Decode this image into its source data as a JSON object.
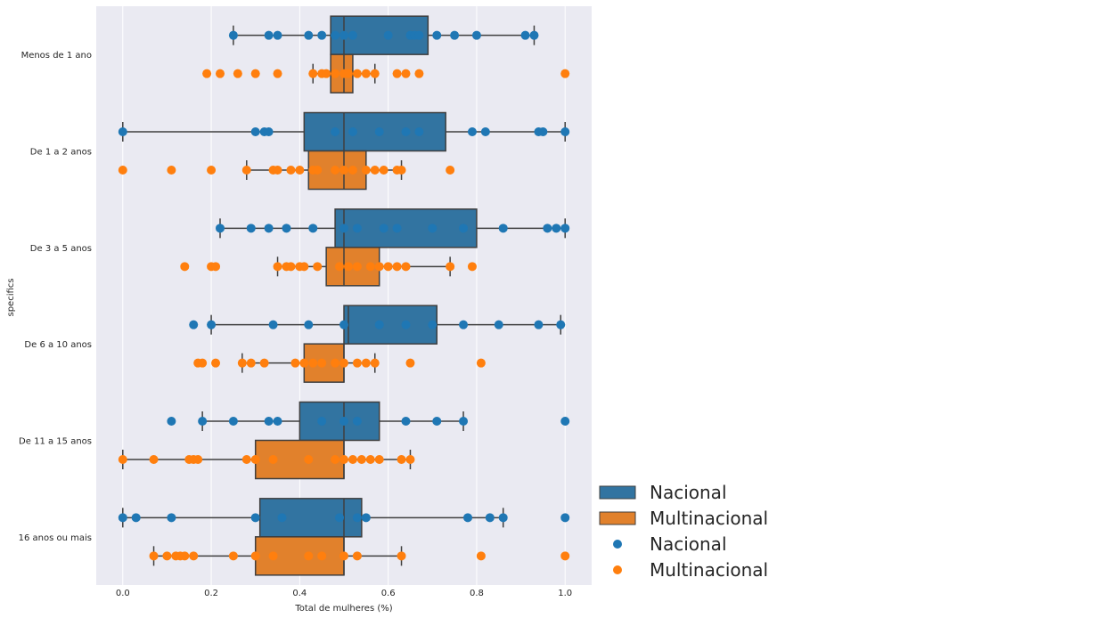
{
  "chart_data": {
    "type": "boxplot",
    "xlabel": "Total de mulheres (%)",
    "ylabel": "specifics",
    "xlim": [
      -0.06,
      1.06
    ],
    "xticks": [
      0.0,
      0.2,
      0.4,
      0.6,
      0.8,
      1.0
    ],
    "xtick_labels": [
      "0.0",
      "0.2",
      "0.4",
      "0.6",
      "0.8",
      "1.0"
    ],
    "grid": true,
    "legend_placement": "lower-right-outside",
    "categories": [
      "Menos de 1 ano",
      "De 1 a 2 anos",
      "De 3 a 5 anos",
      "De 6 a 10 anos",
      "De 11 a 15 anos",
      "16 anos ou mais"
    ],
    "series": [
      {
        "name": "Nacional",
        "color": "#1f77b4",
        "box_color": "#3274a1",
        "boxes": [
          {
            "whisker_low": 0.25,
            "q1": 0.47,
            "median": 0.5,
            "q3": 0.69,
            "whisker_high": 0.93
          },
          {
            "whisker_low": 0.0,
            "q1": 0.41,
            "median": 0.5,
            "q3": 0.73,
            "whisker_high": 1.0
          },
          {
            "whisker_low": 0.22,
            "q1": 0.48,
            "median": 0.5,
            "q3": 0.8,
            "whisker_high": 1.0
          },
          {
            "whisker_low": 0.2,
            "q1": 0.5,
            "median": 0.51,
            "q3": 0.71,
            "whisker_high": 0.99
          },
          {
            "whisker_low": 0.18,
            "q1": 0.4,
            "median": 0.5,
            "q3": 0.58,
            "whisker_high": 0.77
          },
          {
            "whisker_low": 0.0,
            "q1": 0.31,
            "median": 0.5,
            "q3": 0.54,
            "whisker_high": 0.86
          }
        ],
        "points": [
          [
            0.25,
            0.33,
            0.35,
            0.42,
            0.45,
            0.48,
            0.5,
            0.52,
            0.6,
            0.65,
            0.66,
            0.67,
            0.71,
            0.75,
            0.8,
            0.91,
            0.93
          ],
          [
            0.0,
            0.3,
            0.32,
            0.33,
            0.48,
            0.52,
            0.58,
            0.64,
            0.67,
            0.79,
            0.82,
            0.94,
            0.95,
            1.0
          ],
          [
            0.22,
            0.29,
            0.33,
            0.37,
            0.43,
            0.5,
            0.53,
            0.59,
            0.62,
            0.7,
            0.77,
            0.86,
            0.96,
            0.98,
            1.0
          ],
          [
            0.16,
            0.2,
            0.34,
            0.42,
            0.5,
            0.58,
            0.64,
            0.7,
            0.77,
            0.85,
            0.94,
            0.99
          ],
          [
            0.11,
            0.18,
            0.25,
            0.33,
            0.35,
            0.45,
            0.5,
            0.53,
            0.64,
            0.71,
            0.77,
            1.0
          ],
          [
            0.0,
            0.03,
            0.11,
            0.3,
            0.36,
            0.49,
            0.53,
            0.55,
            0.78,
            0.83,
            0.86,
            1.0
          ]
        ]
      },
      {
        "name": "Multinacional",
        "color": "#ff7f0e",
        "box_color": "#e1812c",
        "boxes": [
          {
            "whisker_low": 0.43,
            "q1": 0.47,
            "median": 0.5,
            "q3": 0.52,
            "whisker_high": 0.57
          },
          {
            "whisker_low": 0.28,
            "q1": 0.42,
            "median": 0.5,
            "q3": 0.55,
            "whisker_high": 0.63
          },
          {
            "whisker_low": 0.35,
            "q1": 0.46,
            "median": 0.5,
            "q3": 0.58,
            "whisker_high": 0.74
          },
          {
            "whisker_low": 0.27,
            "q1": 0.41,
            "median": 0.5,
            "q3": 0.5,
            "whisker_high": 0.57
          },
          {
            "whisker_low": 0.0,
            "q1": 0.3,
            "median": 0.5,
            "q3": 0.5,
            "whisker_high": 0.65
          },
          {
            "whisker_low": 0.07,
            "q1": 0.3,
            "median": 0.5,
            "q3": 0.5,
            "whisker_high": 0.63
          }
        ],
        "points": [
          [
            0.19,
            0.22,
            0.26,
            0.3,
            0.35,
            0.43,
            0.45,
            0.46,
            0.48,
            0.5,
            0.51,
            0.53,
            0.55,
            0.57,
            0.62,
            0.64,
            0.67,
            1.0
          ],
          [
            0.0,
            0.11,
            0.2,
            0.28,
            0.34,
            0.35,
            0.38,
            0.4,
            0.43,
            0.44,
            0.48,
            0.5,
            0.52,
            0.55,
            0.57,
            0.59,
            0.62,
            0.63,
            0.74
          ],
          [
            0.14,
            0.2,
            0.21,
            0.35,
            0.37,
            0.38,
            0.4,
            0.41,
            0.44,
            0.49,
            0.51,
            0.53,
            0.56,
            0.58,
            0.6,
            0.62,
            0.64,
            0.74,
            0.79
          ],
          [
            0.17,
            0.18,
            0.21,
            0.27,
            0.29,
            0.32,
            0.39,
            0.41,
            0.43,
            0.45,
            0.48,
            0.5,
            0.53,
            0.55,
            0.57,
            0.65,
            0.81
          ],
          [
            0.0,
            0.07,
            0.15,
            0.16,
            0.17,
            0.28,
            0.3,
            0.34,
            0.42,
            0.48,
            0.5,
            0.52,
            0.54,
            0.56,
            0.58,
            0.63,
            0.65
          ],
          [
            0.07,
            0.1,
            0.12,
            0.13,
            0.14,
            0.16,
            0.25,
            0.3,
            0.34,
            0.42,
            0.45,
            0.5,
            0.53,
            0.63,
            0.81,
            1.0
          ]
        ]
      }
    ],
    "legend": [
      {
        "kind": "box",
        "label": "Nacional",
        "color": "#3274a1"
      },
      {
        "kind": "box",
        "label": "Multinacional",
        "color": "#e1812c"
      },
      {
        "kind": "dot",
        "label": "Nacional",
        "color": "#1f77b4"
      },
      {
        "kind": "dot",
        "label": "Multinacional",
        "color": "#ff7f0e"
      }
    ],
    "colors": {
      "plot_background": "#eaeaf2",
      "grid": "#ffffff",
      "line": "#3f3f3f"
    }
  }
}
